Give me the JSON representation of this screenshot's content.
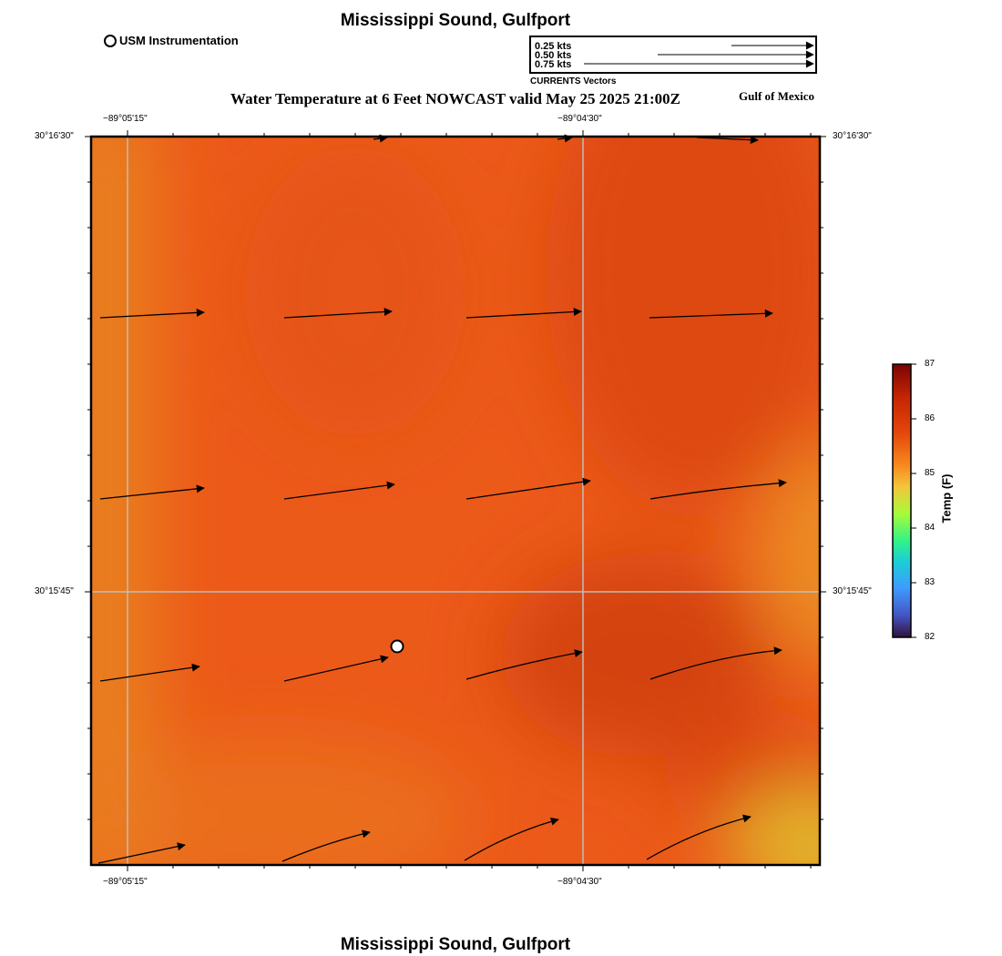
{
  "header": {
    "title": "Mississippi Sound, Gulfport",
    "subtitle": "Water Temperature at 6 Feet NOWCAST valid May 25 2025 21:00Z",
    "region": "Gulf of Mexico"
  },
  "footer": {
    "title": "Mississippi Sound, Gulfport"
  },
  "station_legend": {
    "label": "USM Instrumentation"
  },
  "vector_legend": {
    "rows": [
      "0.25 kts",
      "0.50 kts",
      "0.75 kts"
    ],
    "caption": "CURRENTS Vectors"
  },
  "axes": {
    "lon_ticks": [
      "−89°05'15\"",
      "−89°04'30\""
    ],
    "lat_ticks": [
      "30°16'30\"",
      "30°15'45\""
    ]
  },
  "colorbar": {
    "label": "Temp (F)",
    "ticks": [
      "87",
      "86",
      "85",
      "84",
      "83",
      "82"
    ],
    "min": 82,
    "max": 87
  },
  "colors": {
    "field_base": "#ec5a1a",
    "field_dark": "#d9440f",
    "field_light": "#e98722",
    "field_yellow": "#e2b72c",
    "grid": "#bdbdbd"
  }
}
